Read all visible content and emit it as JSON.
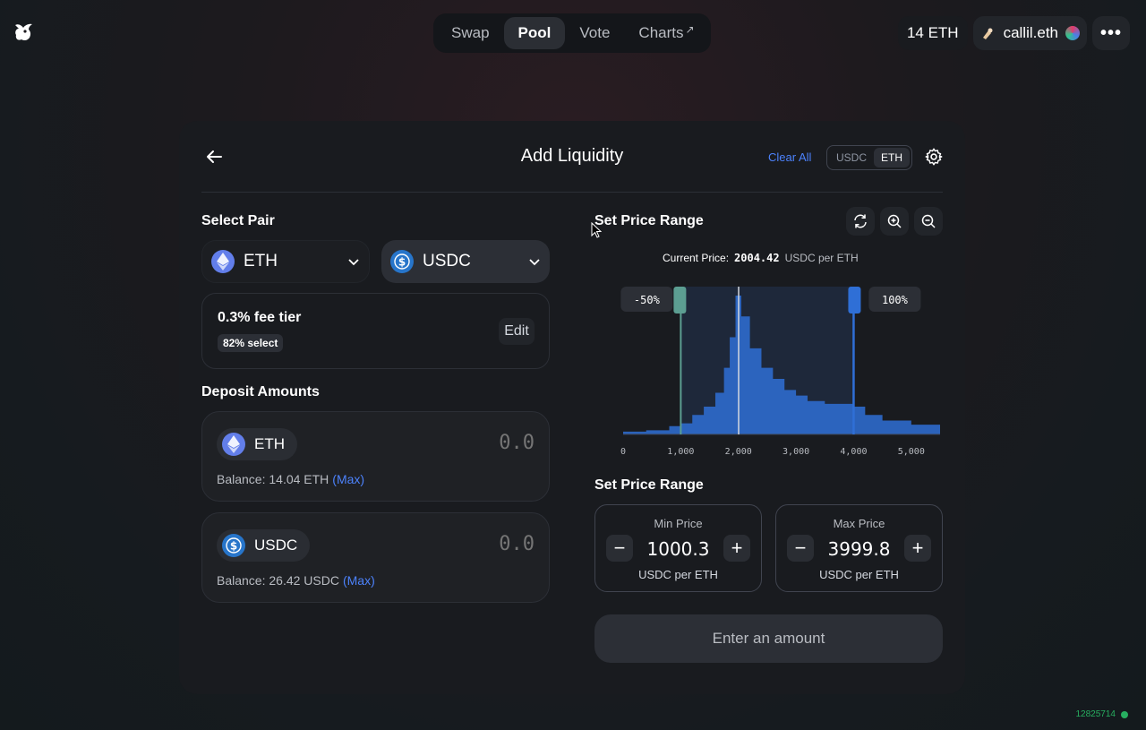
{
  "nav": {
    "tabs": [
      {
        "label": "Swap"
      },
      {
        "label": "Pool"
      },
      {
        "label": "Vote"
      },
      {
        "label": "Charts",
        "suffix": "↗"
      }
    ],
    "eth_balance": "14 ETH",
    "account_name": "callil.eth",
    "more": "•••"
  },
  "header": {
    "title": "Add Liquidity",
    "clear_all": "Clear All",
    "toggle": [
      "USDC",
      "ETH"
    ]
  },
  "select_pair": {
    "label": "Select Pair",
    "token_a": "ETH",
    "token_b": "USDC"
  },
  "fee": {
    "title": "0.3% fee tier",
    "badge": "82% select",
    "edit": "Edit"
  },
  "deposit": {
    "label": "Deposit Amounts",
    "eth": {
      "token": "ETH",
      "amount": "0.0",
      "balance": "Balance: 14.04 ETH",
      "max": "(Max)"
    },
    "usdc": {
      "token": "USDC",
      "amount": "0.0",
      "balance": "Balance: 26.42 USDC",
      "max": "(Max)"
    }
  },
  "range": {
    "label": "Set Price Range",
    "current_price_label": "Current Price:",
    "current_price": "2004.42",
    "current_price_unit": "USDC per ETH",
    "min_handle_label": "-50%",
    "max_handle_label": "100%",
    "label2": "Set Price Range",
    "min": {
      "label": "Min Price",
      "value": "1000.3",
      "unit": "USDC per ETH"
    },
    "max": {
      "label": "Max Price",
      "value": "3999.8",
      "unit": "USDC per ETH"
    },
    "minus": "−",
    "plus": "+"
  },
  "chart_data": {
    "type": "area",
    "x_ticks": [
      "0",
      "1,000",
      "2,000",
      "3,000",
      "4,000",
      "5,000"
    ],
    "xlim": [
      0,
      5500
    ],
    "current_price": 2004.42,
    "selected_range": [
      1000.3,
      3999.8
    ],
    "density": [
      [
        0,
        2
      ],
      [
        400,
        3
      ],
      [
        800,
        6
      ],
      [
        1000,
        8
      ],
      [
        1200,
        14
      ],
      [
        1400,
        20
      ],
      [
        1600,
        30
      ],
      [
        1750,
        48
      ],
      [
        1850,
        70
      ],
      [
        1950,
        100
      ],
      [
        2050,
        85
      ],
      [
        2200,
        62
      ],
      [
        2400,
        48
      ],
      [
        2600,
        40
      ],
      [
        2800,
        32
      ],
      [
        3000,
        28
      ],
      [
        3200,
        24
      ],
      [
        3500,
        22
      ],
      [
        3800,
        22
      ],
      [
        4000,
        20
      ],
      [
        4200,
        14
      ],
      [
        4500,
        10
      ],
      [
        5000,
        7
      ],
      [
        5500,
        5
      ]
    ]
  },
  "action_button": "Enter an amount",
  "block_number": "12825714"
}
